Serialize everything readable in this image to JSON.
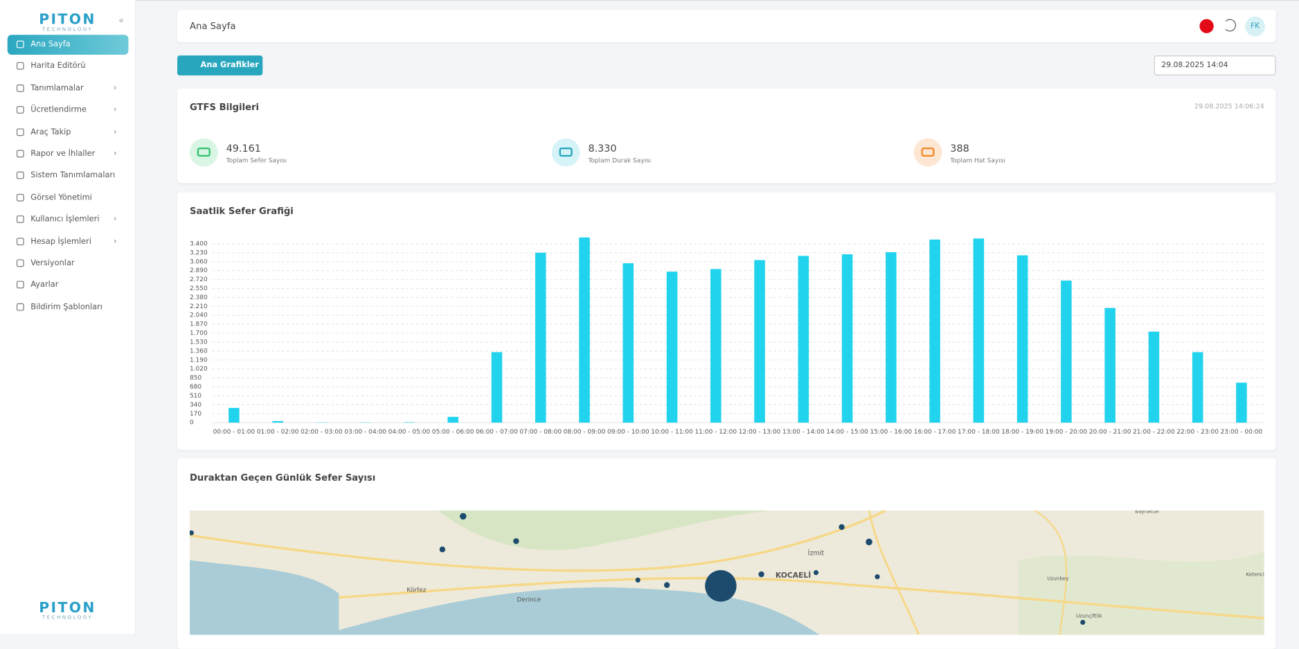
{
  "sidebar": {
    "logo": "PITON",
    "logo_sub": "TECHNOLOGY",
    "items": [
      "Ana Sayfa",
      "Harita Editörü",
      "Tanımlamalar",
      "Ücretlendirme",
      "Araç Takip",
      "Rapor ve İhlaller",
      "Sistem Tanımlamaları",
      "Görsel Yönetimi",
      "Kullanıcı İşlemleri",
      "Hesap İşlemleri",
      "Versiyonlar",
      "Ayarlar",
      "Bildirim Şablonları"
    ]
  },
  "header": {
    "title": "Ana Sayfa",
    "avatar": "FK"
  },
  "toolbar": {
    "button": "Ana Grafikler",
    "date": "29.08.2025 14:04"
  },
  "gtfs": {
    "title": "GTFS Bilgileri",
    "timestamp": "29.08.2025 14:06:24",
    "stats": [
      {
        "value": "49.161",
        "label": "Toplam Sefer Sayısı"
      },
      {
        "value": "8.330",
        "label": "Toplam Durak Sayısı"
      },
      {
        "value": "388",
        "label": "Toplam Hat Sayısı"
      }
    ]
  },
  "chart_data": {
    "type": "bar",
    "title": "Saatlik Sefer Grafiği",
    "categories": [
      "00:00 - 01:00",
      "01:00 - 02:00",
      "02:00 - 03:00",
      "03:00 - 04:00",
      "04:00 - 05:00",
      "05:00 - 06:00",
      "06:00 - 07:00",
      "07:00 - 08:00",
      "08:00 - 09:00",
      "09:00 - 10:00",
      "10:00 - 11:00",
      "11:00 - 12:00",
      "12:00 - 13:00",
      "13:00 - 14:00",
      "14:00 - 15:00",
      "15:00 - 16:00",
      "16:00 - 17:00",
      "17:00 - 18:00",
      "18:00 - 19:00",
      "19:00 - 20:00",
      "20:00 - 21:00",
      "21:00 - 22:00",
      "22:00 - 23:00",
      "23:00 - 00:00"
    ],
    "values": [
      280,
      30,
      5,
      5,
      8,
      110,
      1340,
      3230,
      3520,
      3030,
      2870,
      2920,
      3090,
      3170,
      3200,
      3240,
      3480,
      3500,
      3180,
      2700,
      2180,
      1730,
      1340,
      760
    ],
    "color": "#22d3ee",
    "ylim": [
      0,
      3560
    ],
    "yticks": [
      0,
      170,
      340,
      510,
      680,
      850,
      {
        "value": 1020,
        "label": "1.020"
      },
      {
        "value": 1190,
        "label": "1.190"
      },
      {
        "value": 1360,
        "label": "1.360"
      },
      {
        "value": 1530,
        "label": "1.530"
      },
      {
        "value": 1700,
        "label": "1.700"
      },
      {
        "value": 1870,
        "label": "1.870"
      },
      {
        "value": 2040,
        "label": "2.040"
      },
      {
        "value": 2210,
        "label": "2.210"
      },
      {
        "value": 2380,
        "label": "2.380"
      },
      {
        "value": 2550,
        "label": "2.550"
      },
      {
        "value": 2720,
        "label": "2.720"
      },
      {
        "value": 2890,
        "label": "2.890"
      },
      {
        "value": 3060,
        "label": "3.060"
      },
      {
        "value": 3230,
        "label": "3.230"
      },
      {
        "value": 3400,
        "label": "3.400"
      }
    ],
    "grid": true
  },
  "map": {
    "title": "Duraktan Geçen Günlük Sefer Sayısı",
    "places": [
      "Körfez",
      "Derince",
      "İzmit",
      "KOCAELİ",
      "Bayraktar",
      "Uzunbey",
      "Uzunçiftlik",
      "Ketenci"
    ]
  }
}
